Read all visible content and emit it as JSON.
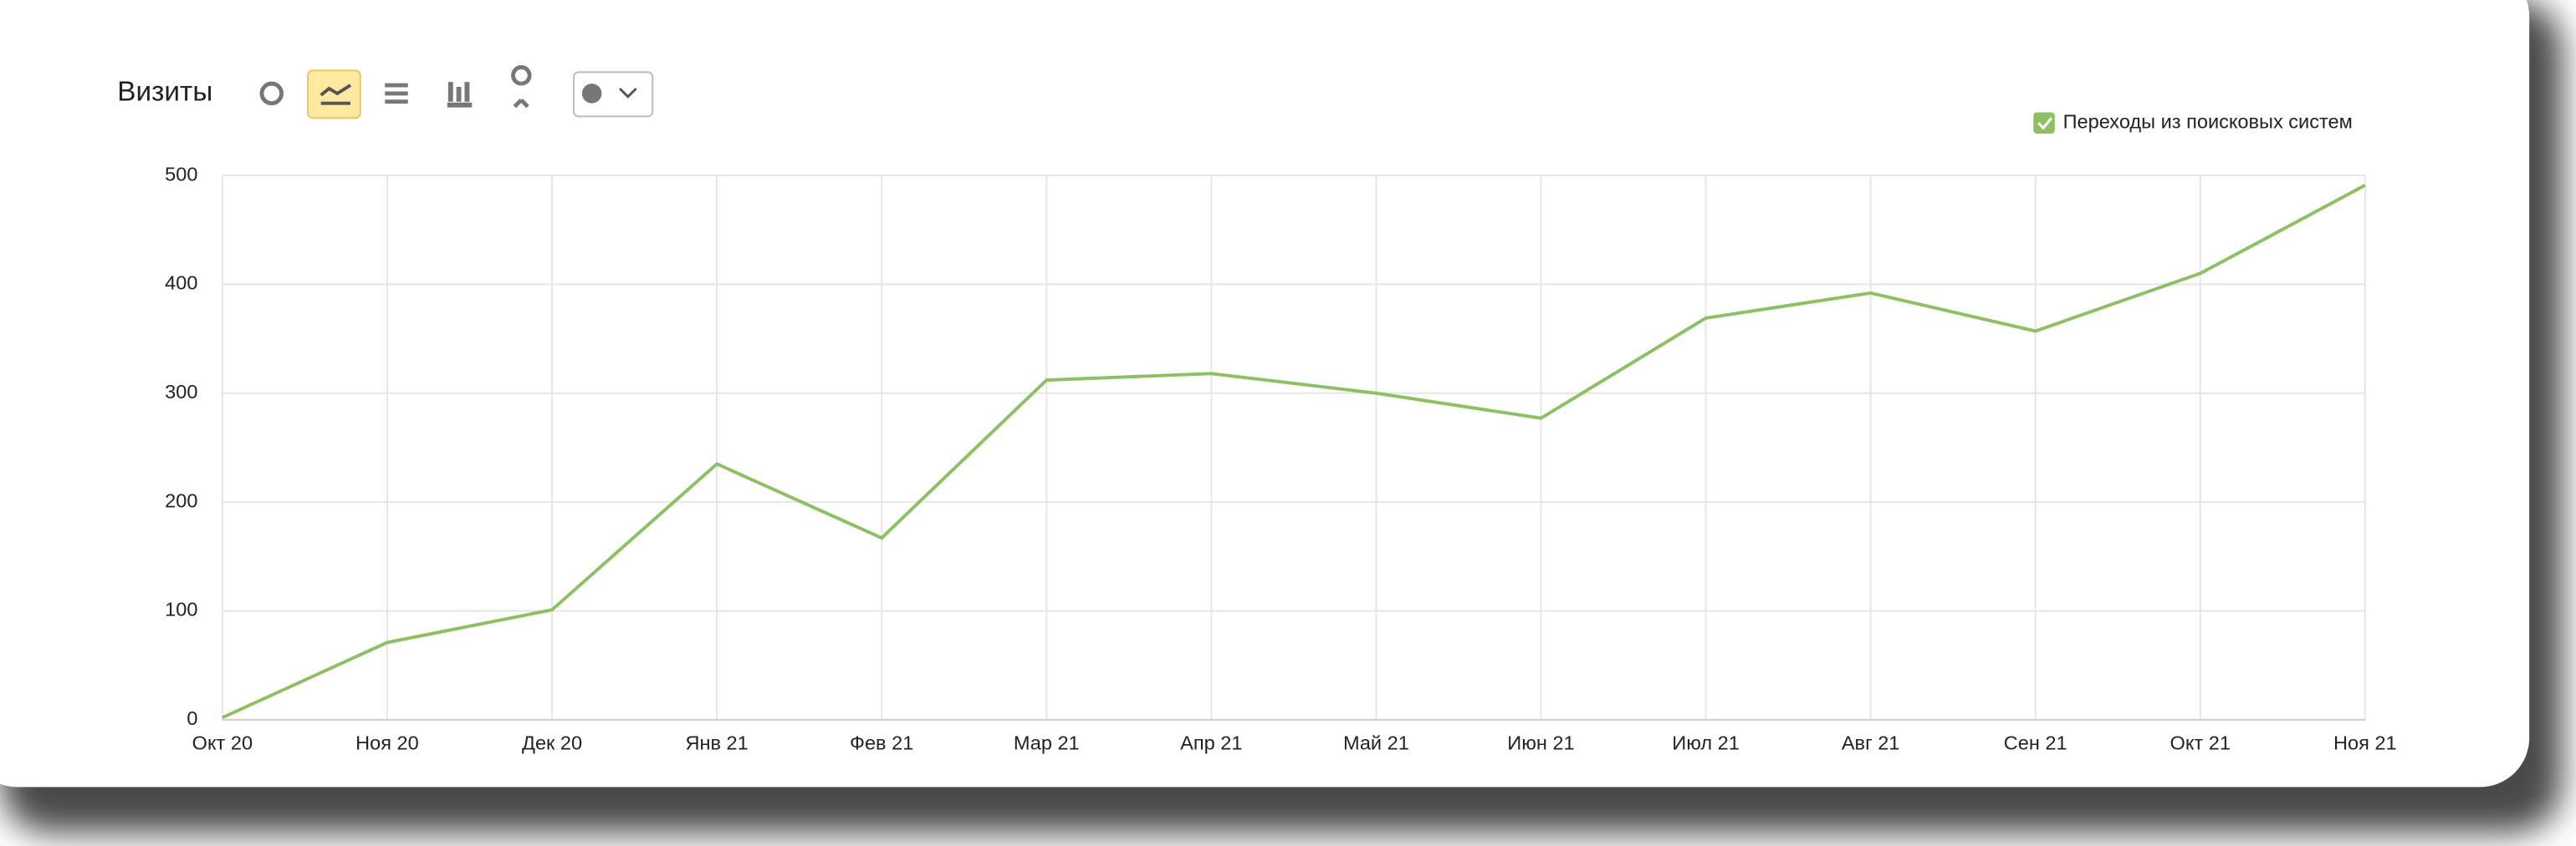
{
  "chart_data": {
    "type": "line",
    "title": "Визиты",
    "categories": [
      "Окт 20",
      "Ноя 20",
      "Дек 20",
      "Янв 21",
      "Фев 21",
      "Мар 21",
      "Апр 21",
      "Май 21",
      "Июн 21",
      "Июл 21",
      "Авг 21",
      "Сен 21",
      "Окт 21",
      "Ноя 21"
    ],
    "series": [
      {
        "name": "Переходы из поисковых систем",
        "color": "#8cc063",
        "values": [
          2,
          71,
          101,
          235,
          167,
          312,
          318,
          300,
          277,
          369,
          392,
          357,
          410,
          491
        ]
      }
    ],
    "ylim": [
      0,
      500
    ],
    "yticks": [
      0,
      100,
      200,
      300,
      400,
      500
    ],
    "grid": true,
    "legend": "top-right"
  }
}
